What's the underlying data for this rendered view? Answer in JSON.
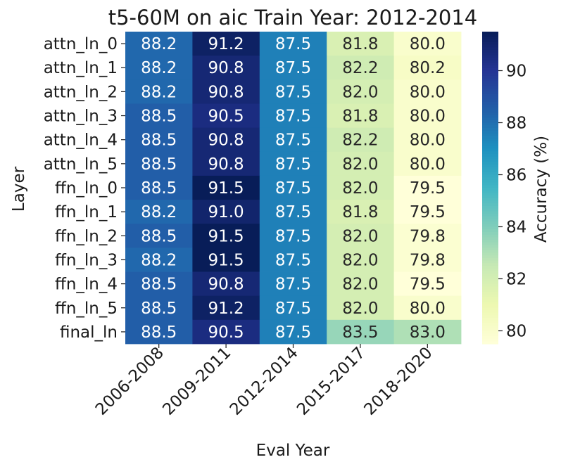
{
  "chart_data": {
    "type": "heatmap",
    "title": "t5-60M on aic Train Year: 2012-2014",
    "xlabel": "Eval Year",
    "ylabel": "Layer",
    "colorbar_label": "Accuracy (%)",
    "colormap": "YlGnBu",
    "vmin": 79.5,
    "vmax": 91.5,
    "colorbar_ticks": [
      "80",
      "82",
      "84",
      "86",
      "88",
      "90"
    ],
    "x_categories": [
      "2006-2008",
      "2009-2011",
      "2012-2014",
      "2015-2017",
      "2018-2020"
    ],
    "y_categories": [
      "attn_ln_0",
      "attn_ln_1",
      "attn_ln_2",
      "attn_ln_3",
      "attn_ln_4",
      "attn_ln_5",
      "ffn_ln_0",
      "ffn_ln_1",
      "ffn_ln_2",
      "ffn_ln_3",
      "ffn_ln_4",
      "ffn_ln_5",
      "final_ln"
    ],
    "values": [
      [
        88.2,
        91.2,
        87.5,
        81.8,
        80.0
      ],
      [
        88.2,
        90.8,
        87.5,
        82.2,
        80.2
      ],
      [
        88.2,
        90.8,
        87.5,
        82.0,
        80.0
      ],
      [
        88.5,
        90.5,
        87.5,
        81.8,
        80.0
      ],
      [
        88.5,
        90.8,
        87.5,
        82.2,
        80.0
      ],
      [
        88.5,
        90.8,
        87.5,
        82.0,
        80.0
      ],
      [
        88.5,
        91.5,
        87.5,
        82.0,
        79.5
      ],
      [
        88.2,
        91.0,
        87.5,
        81.8,
        79.5
      ],
      [
        88.5,
        91.5,
        87.5,
        82.0,
        79.8
      ],
      [
        88.2,
        91.5,
        87.5,
        82.0,
        79.8
      ],
      [
        88.5,
        90.8,
        87.5,
        82.0,
        79.5
      ],
      [
        88.5,
        91.2,
        87.5,
        82.0,
        80.0
      ],
      [
        88.5,
        90.5,
        87.5,
        83.5,
        83.0
      ]
    ]
  }
}
